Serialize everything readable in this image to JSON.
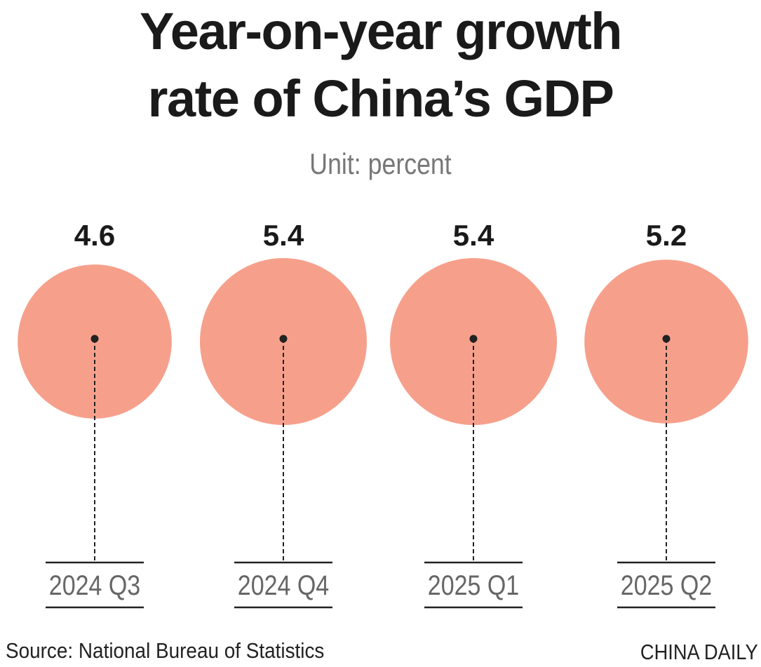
{
  "chart_data": {
    "type": "bubble",
    "title": "Year-on-year growth rate of China’s GDP",
    "title_lines": [
      "Year-on-year growth",
      "rate of China’s GDP"
    ],
    "subtitle": "Unit: percent",
    "categories": [
      "2024 Q3",
      "2024 Q4",
      "2025 Q1",
      "2025 Q2"
    ],
    "values": [
      4.6,
      5.4,
      5.4,
      5.2
    ],
    "value_labels": [
      "4.6",
      "5.4",
      "5.4",
      "5.2"
    ],
    "color": "#F6A08C"
  },
  "footer": {
    "source": "Source: National Bureau of Statistics",
    "brand": "CHINA DAILY"
  }
}
